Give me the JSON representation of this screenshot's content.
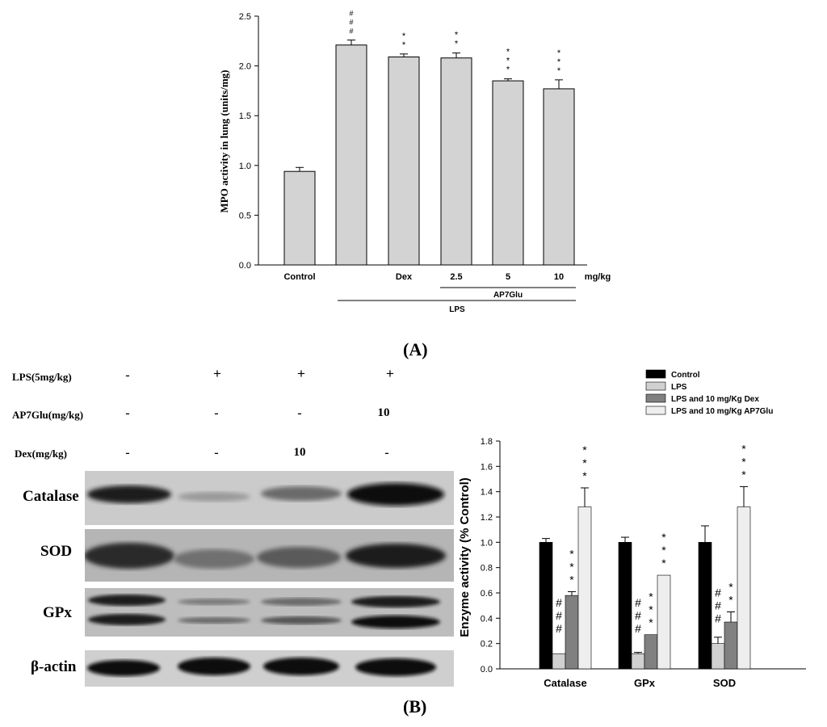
{
  "panelA": {
    "label": "(A)",
    "chart_data": {
      "type": "bar",
      "ylabel": "MPO activity in lung (units/mg)",
      "ylim": [
        0,
        2.5
      ],
      "yticks": [
        "0.0",
        "0.5",
        "1.0",
        "1.5",
        "2.0",
        "2.5"
      ],
      "categories": [
        "Control",
        "",
        "Dex",
        "2.5",
        "5",
        "10"
      ],
      "values": [
        0.94,
        2.21,
        2.09,
        2.08,
        1.85,
        1.77
      ],
      "errors": [
        0.04,
        0.05,
        0.03,
        0.05,
        0.02,
        0.09
      ],
      "annotations": [
        "",
        "###",
        "**",
        "**",
        "***",
        "***"
      ],
      "unit_label": "mg/kg",
      "group_labels": {
        "ap7glu": "AP7Glu",
        "lps": "LPS"
      },
      "bar_color": "#d3d3d3"
    }
  },
  "panelB": {
    "label": "(B)",
    "blot": {
      "row_labels": [
        "LPS(5mg/kg)",
        "AP7Glu(mg/kg)",
        "Dex(mg/kg)"
      ],
      "rows": [
        [
          "-",
          "+",
          "+",
          "+"
        ],
        [
          "-",
          "-",
          "-",
          "10"
        ],
        [
          "-",
          "-",
          "10",
          "-"
        ]
      ],
      "bands": [
        "Catalase",
        "SOD",
        "GPx",
        "β-actin"
      ]
    },
    "chart_data": {
      "type": "bar",
      "ylabel": "Enzyme activity (% Control)",
      "ylim": [
        0,
        1.8
      ],
      "yticks": [
        "0.0",
        "0.2",
        "0.4",
        "0.6",
        "0.8",
        "1.0",
        "1.2",
        "1.4",
        "1.6",
        "1.8"
      ],
      "categories": [
        "Catalase",
        "GPx",
        "SOD"
      ],
      "series": [
        {
          "name": "Control",
          "color": "#000000",
          "values": [
            1.0,
            1.0,
            1.0
          ],
          "errors": [
            0.03,
            0.04,
            0.13
          ],
          "annotations": [
            "",
            "",
            ""
          ]
        },
        {
          "name": "LPS",
          "color": "#d0d0d0",
          "values": [
            0.12,
            0.12,
            0.2
          ],
          "errors": [
            0.0,
            0.01,
            0.05
          ],
          "annotations": [
            "###",
            "###",
            "###"
          ]
        },
        {
          "name": "LPS and 10 mg/Kg Dex",
          "color": "#808080",
          "values": [
            0.58,
            0.27,
            0.37
          ],
          "errors": [
            0.03,
            0.0,
            0.08
          ],
          "annotations": [
            "***",
            "***",
            "**"
          ]
        },
        {
          "name": "LPS and 10 mg/Kg AP7Glu",
          "color": "#eeeeee",
          "values": [
            1.28,
            0.74,
            1.28
          ],
          "errors": [
            0.15,
            0.0,
            0.16
          ],
          "annotations": [
            "***",
            "***",
            "***"
          ]
        }
      ],
      "legend_position": "top-right"
    }
  }
}
